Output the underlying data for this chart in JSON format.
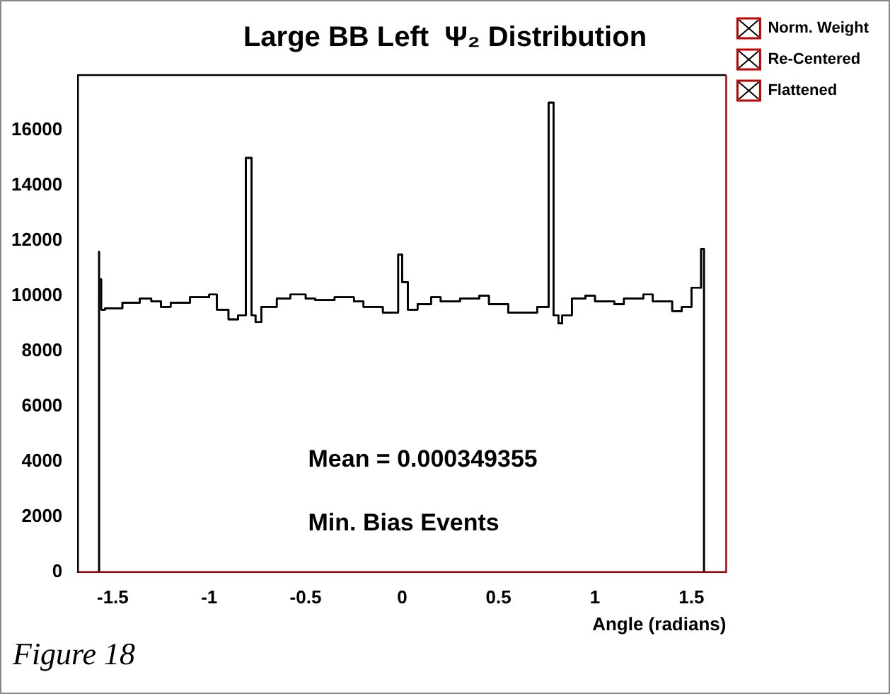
{
  "chart_data": {
    "type": "step",
    "title": "Large BB Left  Ψ₂ Distribution",
    "xlabel": "Angle (radians)",
    "annotations": [
      "Mean = 0.000349355",
      "Min. Bias Events",
      "Figure 18"
    ],
    "x": [
      -1.571,
      -1.571,
      -1.56,
      -1.54,
      -1.45,
      -1.36,
      -1.3,
      -1.25,
      -1.2,
      -1.1,
      -1.0,
      -0.96,
      -0.9,
      -0.85,
      -0.81,
      -0.79,
      -0.78,
      -0.76,
      -0.73,
      -0.65,
      -0.58,
      -0.5,
      -0.45,
      -0.35,
      -0.25,
      -0.2,
      -0.1,
      -0.02,
      0.0,
      0.03,
      0.08,
      0.15,
      0.2,
      0.3,
      0.4,
      0.45,
      0.55,
      0.7,
      0.76,
      0.785,
      0.81,
      0.83,
      0.88,
      0.95,
      1.0,
      1.1,
      1.15,
      1.25,
      1.3,
      1.4,
      1.45,
      1.5,
      1.55,
      1.565,
      1.571
    ],
    "series": [
      {
        "name": "Norm. Weight",
        "color": "#000000",
        "values": [
          0,
          11600,
          10600,
          9500,
          9550,
          9750,
          9900,
          9800,
          9600,
          9750,
          9950,
          10050,
          9500,
          9150,
          9300,
          15000,
          15000,
          9300,
          9050,
          9600,
          9900,
          10050,
          9900,
          9850,
          9950,
          9800,
          9600,
          9400,
          11500,
          10500,
          9500,
          9700,
          9950,
          9800,
          9900,
          10000,
          9700,
          9400,
          9600,
          17000,
          9300,
          9000,
          9300,
          9900,
          10000,
          9800,
          9700,
          9900,
          10050,
          9800,
          9450,
          9600,
          10300,
          11700,
          0
        ]
      },
      {
        "name": "Re-Centered",
        "color": "#000000",
        "values": [
          0,
          11600,
          10600,
          9500,
          9550,
          9750,
          9900,
          9800,
          9600,
          9750,
          9950,
          10050,
          9500,
          9150,
          9300,
          15000,
          15000,
          9300,
          9050,
          9600,
          9900,
          10050,
          9900,
          9850,
          9950,
          9800,
          9600,
          9400,
          11500,
          10500,
          9500,
          9700,
          9950,
          9800,
          9900,
          10000,
          9700,
          9400,
          9600,
          17000,
          9300,
          9000,
          9300,
          9900,
          10000,
          9800,
          9700,
          9900,
          10050,
          9800,
          9450,
          9600,
          10300,
          11700,
          0
        ]
      },
      {
        "name": "Flattened",
        "color": "#000000",
        "values": [
          0,
          11600,
          10600,
          9500,
          9550,
          9750,
          9900,
          9800,
          9600,
          9750,
          9950,
          10050,
          9500,
          9150,
          9300,
          15000,
          15000,
          9300,
          9050,
          9600,
          9900,
          10050,
          9900,
          9850,
          9950,
          9800,
          9600,
          9400,
          11500,
          10500,
          9500,
          9700,
          9950,
          9800,
          9900,
          10000,
          9700,
          9400,
          9600,
          17000,
          9300,
          9000,
          9300,
          9900,
          10000,
          9800,
          9700,
          9900,
          10050,
          9800,
          9450,
          9600,
          10300,
          11700,
          0
        ]
      }
    ],
    "xlim": [
      -1.68,
      1.68
    ],
    "xticks": [
      -1.5,
      -1,
      -0.5,
      0,
      0.5,
      1,
      1.5
    ],
    "ylim": [
      0,
      18000
    ],
    "yticks": [
      0,
      2000,
      4000,
      6000,
      8000,
      10000,
      12000,
      14000,
      16000
    ],
    "grid": false,
    "legend": "right",
    "marker": "none",
    "line_style": "solid"
  }
}
